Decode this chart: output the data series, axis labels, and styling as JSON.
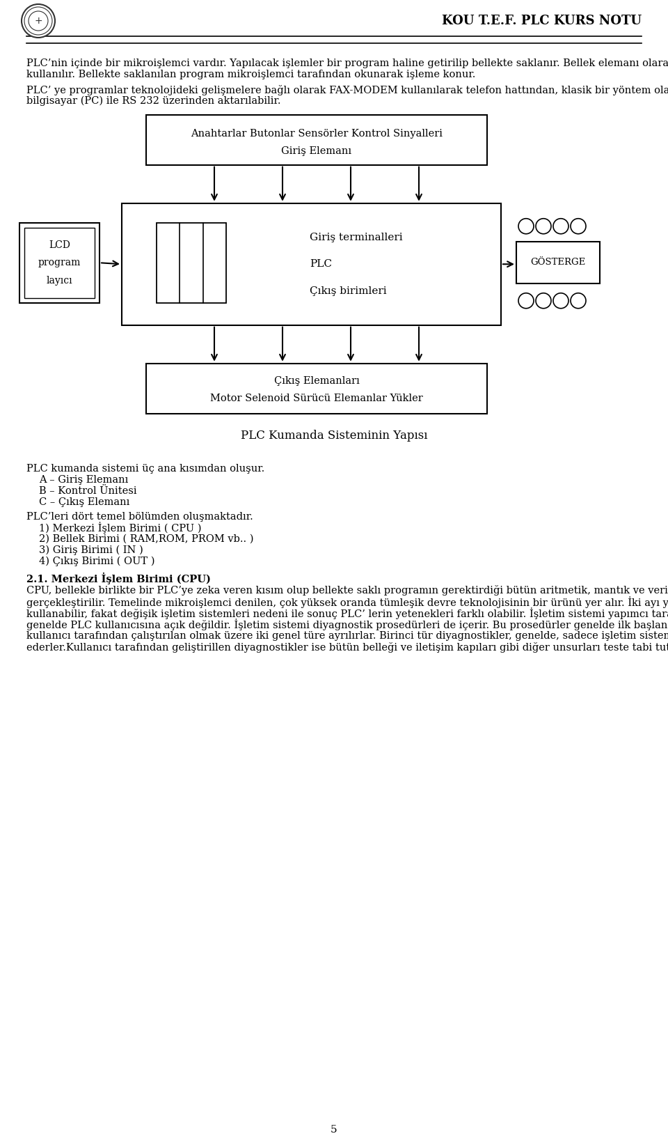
{
  "header_title": "KOU T.E.F. PLC KURS NOTU",
  "header_title_fontsize": 13,
  "body_fontsize": 10.5,
  "page_number": "5",
  "bg_color": "#ffffff",
  "text_color": "#000000",
  "para1": "PLC’nin içinde bir mikroişlemci vardır. Yapılacak işlemler bir program haline getirilip bellekte saklanır. Bellek elemanı olarak RAM, ROM PROM, EPROM veya EEPROM kullanılır. Bellekte saklanılan program mikroişlemci tarafından okunarak işleme konur.",
  "para2": "PLC’ ye programlar teknolojideki gelişmelere bağlı olarak FAX-MODEM kullanılarak telefon hattından, klasik  bir yöntem olan tuş takımı kullanılarak veya bilgisayar (PC) ile RS 232 üzerinden aktarılabilir.",
  "diagram_top_line1": "Anahtarlar Butonlar Sensörler Kontrol Sinyalleri",
  "diagram_top_line2": "Giriş Elemanı",
  "diagram_main_line1": "Giriş terminalleri",
  "diagram_main_line2": "PLC",
  "diagram_main_line3": "Çıkış birimleri",
  "diagram_left_line1": "LCD",
  "diagram_left_line2": "program",
  "diagram_left_line3": "layıcı",
  "diagram_right_label": "GÖSTERGE",
  "diagram_bottom_line1": "Çıkış Elemanları",
  "diagram_bottom_line2": "Motor Selenoid Sürücü Elemanlar Yükler",
  "diagram_caption": "PLC Kumanda Sisteminin Yapısı",
  "after1": "PLC kumanda sistemi üç ana kısımdan oluşur.",
  "after_list1": [
    "A – Giriş Elemanı",
    "B – Kontrol Ünitesi",
    "C – Çıkış Elemanı"
  ],
  "after2": "PLC’leri dört temel bölümden oluşmaktadır.",
  "after_list2": [
    "1)  Merkezi İşlem Birimi ( CPU )",
    "2)  Bellek Birimi ( RAM,ROM, PROM vb.. )",
    "3)  Giriş Birimi ( IN )",
    "4)  Çıkış Birimi ( OUT )"
  ],
  "section_heading": "2.1. Merkezi İşlem Birimi (CPU)",
  "section_body": "CPU, bellekle birlikte bir PLC’ye zeka veren kısım olup bellekte saklı programın gerektirdiği bütün aritmetik, mantık ve veri işleme gibi operasyonlar bu birimde gerçekleştirilir.  Temelinde mikroişlemci denilen, çok yüksek oranda tümleşik devre teknolojisinin bir ürünü yer alır.  İki ayı yapımcı aynı mikroişlemciyi kullanabilir, fakat değişik işletim sistemleri nedeni ile sonuç PLC’ lerin yetenekleri farklı olabilir.  İşletim sistemi yapımcı tarafından hazırlanmış olup genelde PLC kullanıcısına açık değildir.  İşletim sistemi diyagnostik prosedürleri de içerir.  Bu prosedürler genelde ilk başlangıçta kendinden çalışan yanı kullanıcı tarafından çalıştırılan olmak üzere iki genel türe ayrılırlar.  Birinci tür diyagnostikler, genelde, sadece işletim sisteminin kullandığı belleği test ederler.Kullanıcı tarafından geliştirillen diyagnostikler ise bütün belleği ve iletişim kapıları gibi diğer unsurları teste tabi tutarlar."
}
